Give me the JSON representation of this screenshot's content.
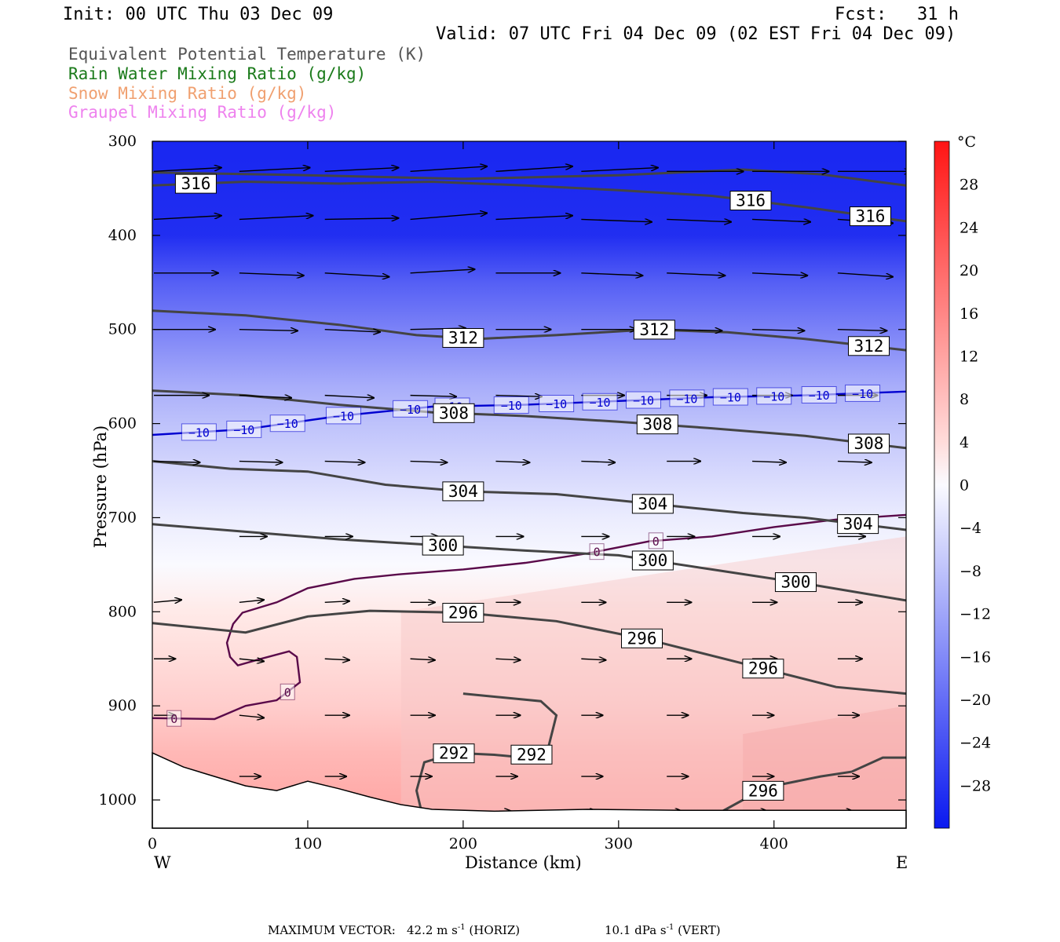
{
  "header": {
    "init": "Init: 00 UTC Thu 03 Dec 09",
    "fcst_label": "Fcst:",
    "fcst_value": "31 h",
    "valid": "Valid: 07 UTC Fri 04 Dec 09 (02 EST Fri 04 Dec 09)"
  },
  "legend": [
    {
      "text": "Equivalent Potential Temperature (K)",
      "color": "#555555"
    },
    {
      "text": "Rain Water Mixing Ratio (g/kg)",
      "color": "#1a7a1a"
    },
    {
      "text": "Snow Mixing Ratio (g/kg)",
      "color": "#f0a070"
    },
    {
      "text": "Graupel Mixing Ratio (g/kg)",
      "color": "#ee82ee"
    }
  ],
  "footer": {
    "max_vector_label": "MAXIMUM VECTOR:",
    "horiz_value": "42.2 m s",
    "horiz_exp": "-1",
    "horiz_tag": "(HORIZ)",
    "vert_value": "10.1 dPa s",
    "vert_exp": "-1",
    "vert_tag": "(VERT)"
  },
  "chart_data": {
    "type": "heatmap",
    "xlabel": "Distance (km)",
    "ylabel": "Pressure (hPa)",
    "x_left_label": "W",
    "x_right_label": "E",
    "xlim": [
      0,
      485
    ],
    "ylim": [
      1030,
      300
    ],
    "x_ticks": [
      0,
      100,
      200,
      300,
      400
    ],
    "y_ticks": [
      300,
      400,
      500,
      600,
      700,
      800,
      900,
      1000
    ],
    "colorbar": {
      "unit": "°C",
      "range": [
        -32,
        32
      ],
      "tick_values": [
        28,
        24,
        20,
        16,
        12,
        8,
        4,
        0,
        -4,
        -8,
        -12,
        -16,
        -20,
        -24,
        -28
      ],
      "tick_labels": [
        "28",
        "24",
        "20",
        "16",
        "12",
        "8",
        "4",
        "0",
        "−4",
        "−8",
        "−12",
        "−16",
        "−20",
        "−24",
        "−28"
      ]
    },
    "temperature_field": [
      {
        "p": 300,
        "t": -30
      },
      {
        "p": 400,
        "t": -29
      },
      {
        "p": 450,
        "t": -22
      },
      {
        "p": 500,
        "t": -17
      },
      {
        "p": 560,
        "t": -11
      },
      {
        "p": 600,
        "t": -8
      },
      {
        "p": 650,
        "t": -5
      },
      {
        "p": 700,
        "t": -2
      },
      {
        "p": 750,
        "t": 0
      },
      {
        "p": 800,
        "t": 2
      },
      {
        "p": 850,
        "t": 4
      },
      {
        "p": 900,
        "t": 6
      },
      {
        "p": 950,
        "t": 9
      },
      {
        "p": 1000,
        "t": 11
      },
      {
        "p": 1030,
        "t": 12
      }
    ],
    "theta_e_contours": [
      {
        "value": 316,
        "points": [
          [
            0,
            347
          ],
          [
            60,
            343
          ],
          [
            120,
            345
          ],
          [
            180,
            343
          ],
          [
            240,
            347
          ],
          [
            300,
            352
          ],
          [
            360,
            358
          ],
          [
            420,
            370
          ],
          [
            485,
            385
          ]
        ],
        "labels": [
          {
            "text": "316",
            "x": 28
          },
          {
            "text": "316",
            "x": 385
          },
          {
            "text": "316",
            "x": 462
          }
        ]
      },
      {
        "value": 316,
        "points": [
          [
            0,
            333
          ],
          [
            100,
            336
          ],
          [
            200,
            340
          ],
          [
            300,
            336
          ],
          [
            380,
            330
          ],
          [
            430,
            335
          ],
          [
            485,
            347
          ]
        ],
        "labels": []
      },
      {
        "value": 312,
        "points": [
          [
            0,
            480
          ],
          [
            60,
            485
          ],
          [
            120,
            495
          ],
          [
            170,
            506
          ],
          [
            210,
            510
          ],
          [
            260,
            506
          ],
          [
            320,
            500
          ],
          [
            370,
            503
          ],
          [
            420,
            510
          ],
          [
            485,
            522
          ]
        ],
        "labels": [
          {
            "text": "312",
            "x": 200
          },
          {
            "text": "312",
            "x": 323
          },
          {
            "text": "312",
            "x": 461
          }
        ]
      },
      {
        "value": 308,
        "points": [
          [
            0,
            565
          ],
          [
            60,
            570
          ],
          [
            120,
            580
          ],
          [
            180,
            588
          ],
          [
            240,
            592
          ],
          [
            300,
            598
          ],
          [
            360,
            605
          ],
          [
            420,
            613
          ],
          [
            485,
            626
          ]
        ],
        "labels": [
          {
            "text": "308",
            "x": 194
          },
          {
            "text": "308",
            "x": 325
          },
          {
            "text": "308",
            "x": 461
          }
        ]
      },
      {
        "value": 304,
        "points": [
          [
            0,
            640
          ],
          [
            50,
            648
          ],
          [
            100,
            651
          ],
          [
            150,
            665
          ],
          [
            200,
            672
          ],
          [
            260,
            675
          ],
          [
            320,
            685
          ],
          [
            380,
            695
          ],
          [
            420,
            700
          ],
          [
            485,
            713
          ]
        ],
        "labels": [
          {
            "text": "304",
            "x": 200
          },
          {
            "text": "304",
            "x": 322
          },
          {
            "text": "304",
            "x": 454
          }
        ]
      },
      {
        "value": 300,
        "points": [
          [
            0,
            707
          ],
          [
            60,
            715
          ],
          [
            120,
            723
          ],
          [
            170,
            728
          ],
          [
            240,
            735
          ],
          [
            300,
            740
          ],
          [
            360,
            755
          ],
          [
            420,
            770
          ],
          [
            485,
            788
          ]
        ],
        "labels": [
          {
            "text": "300",
            "x": 187
          },
          {
            "text": "300",
            "x": 322
          },
          {
            "text": "300",
            "x": 414
          }
        ]
      },
      {
        "value": 296,
        "points": [
          [
            0,
            812
          ],
          [
            60,
            822
          ],
          [
            100,
            805
          ],
          [
            140,
            799
          ],
          [
            200,
            801
          ],
          [
            260,
            810
          ],
          [
            320,
            830
          ],
          [
            380,
            855
          ],
          [
            440,
            880
          ],
          [
            485,
            887
          ]
        ],
        "labels": [
          {
            "text": "296",
            "x": 200
          },
          {
            "text": "296",
            "x": 315
          },
          {
            "text": "296",
            "x": 393
          }
        ]
      },
      {
        "value": 296,
        "points": [
          [
            358,
            1020
          ],
          [
            380,
            1000
          ],
          [
            400,
            985
          ],
          [
            430,
            975
          ],
          [
            450,
            970
          ],
          [
            470,
            955
          ],
          [
            485,
            955
          ]
        ],
        "labels": [
          {
            "text": "296",
            "x": 393
          }
        ]
      },
      {
        "value": 292,
        "points": [
          [
            175,
            1025
          ],
          [
            170,
            990
          ],
          [
            175,
            960
          ],
          [
            195,
            950
          ],
          [
            220,
            952
          ],
          [
            240,
            955
          ],
          [
            255,
            943
          ],
          [
            260,
            910
          ],
          [
            250,
            895
          ],
          [
            200,
            887
          ]
        ],
        "labels": [
          {
            "text": "292",
            "x": 194
          },
          {
            "text": "292",
            "x": 244
          }
        ]
      }
    ],
    "isotherms": [
      {
        "value": -10,
        "color": "#0000d0",
        "points": [
          [
            0,
            612
          ],
          [
            60,
            606
          ],
          [
            120,
            592
          ],
          [
            180,
            582
          ],
          [
            240,
            580
          ],
          [
            300,
            576
          ],
          [
            360,
            572
          ],
          [
            420,
            570
          ],
          [
            485,
            566
          ]
        ],
        "labels": [
          {
            "text": "−10",
            "x": 30
          },
          {
            "text": "−10",
            "x": 59
          },
          {
            "text": "−10",
            "x": 87
          },
          {
            "text": "−10",
            "x": 123
          },
          {
            "text": "−10",
            "x": 166
          },
          {
            "text": "−10",
            "x": 193
          },
          {
            "text": "−10",
            "x": 231
          },
          {
            "text": "−10",
            "x": 260
          },
          {
            "text": "−10",
            "x": 288
          },
          {
            "text": "−10",
            "x": 316
          },
          {
            "text": "−10",
            "x": 344
          },
          {
            "text": "−10",
            "x": 372
          },
          {
            "text": "−10",
            "x": 400
          },
          {
            "text": "−10",
            "x": 429
          },
          {
            "text": "−10",
            "x": 457
          }
        ]
      },
      {
        "value": 0,
        "color": "#5a0a4a",
        "points": [
          [
            0,
            913
          ],
          [
            40,
            914
          ],
          [
            60,
            900
          ],
          [
            80,
            894
          ],
          [
            95,
            875
          ],
          [
            93,
            848
          ],
          [
            88,
            842
          ],
          [
            70,
            850
          ],
          [
            55,
            857
          ],
          [
            50,
            848
          ],
          [
            48,
            833
          ],
          [
            52,
            813
          ],
          [
            58,
            801
          ],
          [
            80,
            790
          ],
          [
            100,
            775
          ],
          [
            130,
            765
          ],
          [
            160,
            760
          ],
          [
            200,
            755
          ],
          [
            240,
            748
          ],
          [
            280,
            738
          ],
          [
            320,
            725
          ],
          [
            360,
            720
          ],
          [
            400,
            710
          ],
          [
            440,
            702
          ],
          [
            485,
            697
          ]
        ],
        "labels": [
          {
            "text": "0",
            "x": 14
          },
          {
            "text": "0",
            "x": 87
          },
          {
            "text": "0",
            "x": 286
          },
          {
            "text": "0",
            "x": 324
          }
        ]
      }
    ],
    "surface_profile": [
      [
        0,
        950
      ],
      [
        20,
        965
      ],
      [
        40,
        975
      ],
      [
        60,
        985
      ],
      [
        80,
        990
      ],
      [
        90,
        985
      ],
      [
        100,
        980
      ],
      [
        120,
        988
      ],
      [
        140,
        997
      ],
      [
        160,
        1005
      ],
      [
        180,
        1010
      ],
      [
        220,
        1012
      ],
      [
        280,
        1010
      ],
      [
        340,
        1011
      ],
      [
        400,
        1011
      ],
      [
        485,
        1011
      ]
    ],
    "wind_vectors": [
      {
        "p": 332,
        "xs": [
          0,
          55,
          110,
          165,
          220,
          275,
          330,
          385,
          440
        ],
        "u": [
          44,
          46,
          48,
          50,
          50,
          50,
          50,
          50,
          48
        ],
        "w": [
          3,
          3,
          3,
          4,
          4,
          3,
          0,
          0,
          0
        ]
      },
      {
        "p": 383,
        "xs": [
          0,
          55,
          110,
          165,
          220,
          275,
          330,
          385,
          440
        ],
        "u": [
          44,
          48,
          48,
          50,
          50,
          46,
          42,
          38,
          36
        ],
        "w": [
          3,
          3,
          1,
          5,
          3,
          -2,
          -2,
          -2,
          -3
        ]
      },
      {
        "p": 440,
        "xs": [
          0,
          55,
          110,
          165,
          220,
          275,
          330,
          385,
          440
        ],
        "u": [
          42,
          42,
          42,
          42,
          42,
          40,
          38,
          36,
          36
        ],
        "w": [
          0,
          -2,
          -3,
          3,
          0,
          -2,
          -2,
          -2,
          -3
        ]
      },
      {
        "p": 500,
        "xs": [
          0,
          55,
          110,
          165,
          220,
          275,
          330,
          385,
          440
        ],
        "u": [
          40,
          38,
          36,
          36,
          36,
          36,
          36,
          34,
          32
        ],
        "w": [
          0,
          -1,
          -2,
          1,
          0,
          0,
          -1,
          -1,
          -1
        ]
      },
      {
        "p": 570,
        "xs": [
          0,
          55,
          110,
          165,
          220,
          275,
          330,
          385,
          440
        ],
        "u": [
          36,
          34,
          32,
          30,
          30,
          28,
          26,
          26,
          26
        ],
        "w": [
          0,
          -2,
          -2,
          -1,
          -1,
          0,
          0,
          0,
          0
        ]
      },
      {
        "p": 640,
        "xs": [
          0,
          55,
          110,
          165,
          220,
          275,
          330,
          385,
          440
        ],
        "u": [
          30,
          28,
          26,
          24,
          22,
          22,
          22,
          22,
          22
        ],
        "w": [
          -1,
          -1,
          -1,
          -1,
          -1,
          -1,
          0,
          -1,
          -1
        ]
      },
      {
        "p": 720,
        "xs": [
          55,
          110,
          165,
          220,
          275,
          330,
          385,
          440
        ],
        "u": [
          18,
          18,
          18,
          18,
          18,
          18,
          18,
          18
        ],
        "w": [
          0,
          0,
          0,
          0,
          0,
          0,
          0,
          0
        ]
      },
      {
        "p": 790,
        "xs": [
          0,
          55,
          110,
          165,
          220,
          275,
          330,
          385,
          440
        ],
        "u": [
          18,
          16,
          16,
          16,
          16,
          16,
          16,
          16,
          16
        ],
        "w": [
          2,
          2,
          1,
          0,
          0,
          0,
          0,
          0,
          0
        ]
      },
      {
        "p": 850,
        "xs": [
          0,
          55,
          110,
          165,
          220,
          275,
          330,
          385,
          440
        ],
        "u": [
          14,
          16,
          16,
          16,
          16,
          16,
          16,
          16,
          16
        ],
        "w": [
          0,
          -2,
          -1,
          -1,
          -1,
          -1,
          0,
          0,
          0
        ]
      },
      {
        "p": 910,
        "xs": [
          0,
          55,
          110,
          165,
          220,
          275,
          330,
          385,
          440
        ],
        "u": [
          14,
          16,
          16,
          16,
          16,
          14,
          14,
          14,
          14
        ],
        "w": [
          0,
          -2,
          0,
          0,
          0,
          0,
          0,
          0,
          0
        ]
      },
      {
        "p": 975,
        "xs": [
          0,
          55,
          110,
          165,
          220,
          275,
          330,
          385,
          440
        ],
        "u": [
          14,
          14,
          14,
          14,
          14,
          14,
          14,
          14,
          14
        ],
        "w": [
          0,
          0,
          0,
          0,
          0,
          0,
          0,
          0,
          0
        ]
      },
      {
        "p": 1012,
        "xs": [
          55,
          110,
          165,
          220,
          275,
          330,
          385,
          440
        ],
        "u": [
          10,
          10,
          10,
          10,
          10,
          10,
          10,
          10
        ],
        "w": [
          0,
          0,
          0,
          0,
          0,
          0,
          0,
          0
        ]
      }
    ]
  }
}
